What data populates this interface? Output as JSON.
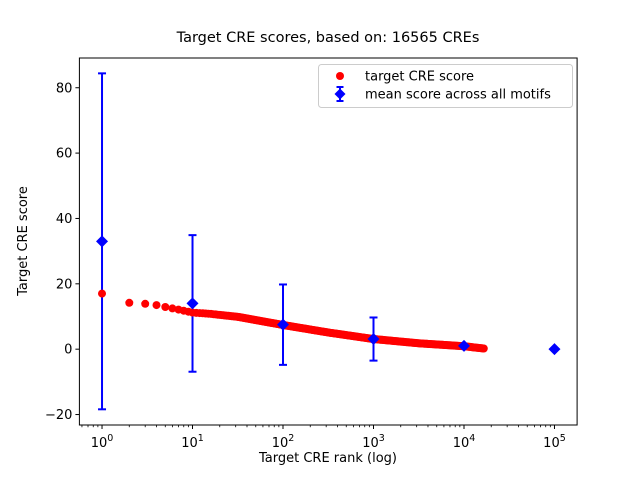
{
  "figure": {
    "title": "Target CRE scores, based on: 16565 CREs",
    "xlabel": "Target CRE rank (log)",
    "ylabel": "Target CRE score"
  },
  "legend": {
    "entries": [
      {
        "label": "target CRE score",
        "marker": "circle-icon",
        "color": "#ff0000"
      },
      {
        "label": "mean score across all motifs",
        "marker": "diamond-errorbar-icon",
        "color": "#0000ff"
      }
    ]
  },
  "colors": {
    "target_series": "#ff0000",
    "mean_series": "#0000ff",
    "axis": "#000000",
    "legend_border": "#cccccc",
    "background": "#ffffff"
  },
  "chart_data": {
    "type": "scatter",
    "xscale": "log",
    "grid": false,
    "legend_position": "upper right",
    "title": "Target CRE scores, based on: 16565 CREs",
    "xlabel": "Target CRE rank (log)",
    "ylabel": "Target CRE score",
    "xlim_log10": [
      -0.25,
      5.25
    ],
    "ylim": [
      -23.2,
      89.1
    ],
    "x_major_tick_exponents": [
      0,
      1,
      2,
      3,
      4,
      5
    ],
    "x_tick_base": "10",
    "y_ticks": [
      -20,
      0,
      20,
      40,
      60,
      80
    ],
    "y_tick_labels": [
      "−20",
      "0",
      "20",
      "40",
      "60",
      "80"
    ],
    "series": [
      {
        "name": "target CRE score",
        "type": "scatter-dense",
        "color": "#ff0000",
        "marker": "circle",
        "n_points_depicted": 16565,
        "rank_range": [
          1,
          16565
        ],
        "anchor_points_log10x_y": [
          [
            0.0,
            17.0
          ],
          [
            0.301,
            14.2
          ],
          [
            0.477,
            13.9
          ],
          [
            0.602,
            13.5
          ],
          [
            0.699,
            12.9
          ],
          [
            0.9,
            11.8
          ],
          [
            1.0,
            11.2
          ],
          [
            1.2,
            10.8
          ],
          [
            1.5,
            9.9
          ],
          [
            2.0,
            7.4
          ],
          [
            2.5,
            5.1
          ],
          [
            3.0,
            3.1
          ],
          [
            3.5,
            1.8
          ],
          [
            4.0,
            0.9
          ],
          [
            4.219,
            0.2
          ]
        ]
      },
      {
        "name": "mean score across all motifs",
        "type": "errorbar",
        "color": "#0000ff",
        "marker": "diamond",
        "x": [
          1,
          10,
          100,
          1000,
          10000,
          100000
        ],
        "y": [
          33.0,
          14.0,
          7.5,
          3.1,
          1.0,
          0.0
        ],
        "yerr": [
          51.4,
          20.9,
          12.3,
          6.6,
          0,
          0
        ]
      }
    ]
  }
}
